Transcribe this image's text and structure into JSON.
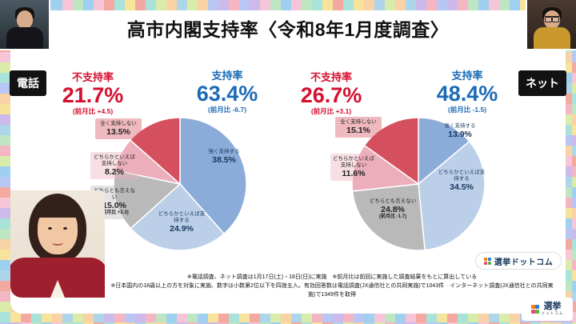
{
  "title": "高市内閣支持率〈令和8年1月度調査〉",
  "panels": [
    {
      "header": "電話",
      "disapproval": {
        "label": "不支持率",
        "value": "21.7%",
        "mom": "(前月比 +4.5)"
      },
      "approval": {
        "label": "支持率",
        "value": "63.4%",
        "mom": "(前月比 -6.7)"
      }
    },
    {
      "header": "ネット",
      "disapproval": {
        "label": "不支持率",
        "value": "26.7%",
        "mom": "(前月比 +3.1)"
      },
      "approval": {
        "label": "支持率",
        "value": "48.4%",
        "mom": "(前月比 -1.5)"
      }
    }
  ],
  "chart_data": [
    {
      "type": "pie",
      "title": "電話",
      "labels": [
        "強く支持する",
        "どちらかといえば支持する",
        "どちらとも言えない",
        "どちらかといえば支持しない",
        "全く支持しない"
      ],
      "values": [
        38.5,
        24.9,
        15.0,
        8.2,
        13.5
      ],
      "display_values": [
        "38.5%",
        "24.9%",
        "15.0%",
        "8.2%",
        "13.5%"
      ],
      "annotations": [
        "",
        "",
        "(前月比 +2.3)",
        "",
        ""
      ],
      "colors": [
        "#8bacd8",
        "#bccfe8",
        "#b9b9b9",
        "#ecaebb",
        "#d5505f"
      ],
      "start_angle": 0,
      "direction": "clockwise",
      "summary": {
        "approval": 63.4,
        "disapproval": 21.7
      }
    },
    {
      "type": "pie",
      "title": "ネット",
      "labels": [
        "強く支持する",
        "どちらかといえば支持する",
        "どちらとも言えない",
        "どちらかといえば支持しない",
        "全く支持しない"
      ],
      "values": [
        13.9,
        34.5,
        24.8,
        11.6,
        15.1
      ],
      "display_values": [
        "13.9%",
        "34.5%",
        "24.8%",
        "11.6%",
        "15.1%"
      ],
      "annotations": [
        "",
        "",
        "(前月比 -1.7)",
        "",
        ""
      ],
      "colors": [
        "#8bacd8",
        "#bccfe8",
        "#b9b9b9",
        "#ecaebb",
        "#d5505f"
      ],
      "start_angle": 0,
      "direction": "clockwise",
      "summary": {
        "approval": 48.4,
        "disapproval": 26.7
      }
    }
  ],
  "footnotes": [
    "※電話調査、ネット調査は1月17日(土)・18日(日)に実施　※前月比は前回に実施した調査結果をもとに算出している",
    "※日本国内の18歳以上の方を対象に実施、数字は小数第2位以下を四捨五入。有効回答数は電話調査(JX通信社との共同実施)で1043件　インターネット調査(JX通信社との共同実施)で1349件を取得"
  ],
  "logos": {
    "badge": "選挙ドットコム",
    "corner_main": "選挙",
    "corner_sub": "ドットコム"
  },
  "colors": {
    "approval": "#1b6bb5",
    "disapproval": "#d50f2f"
  }
}
